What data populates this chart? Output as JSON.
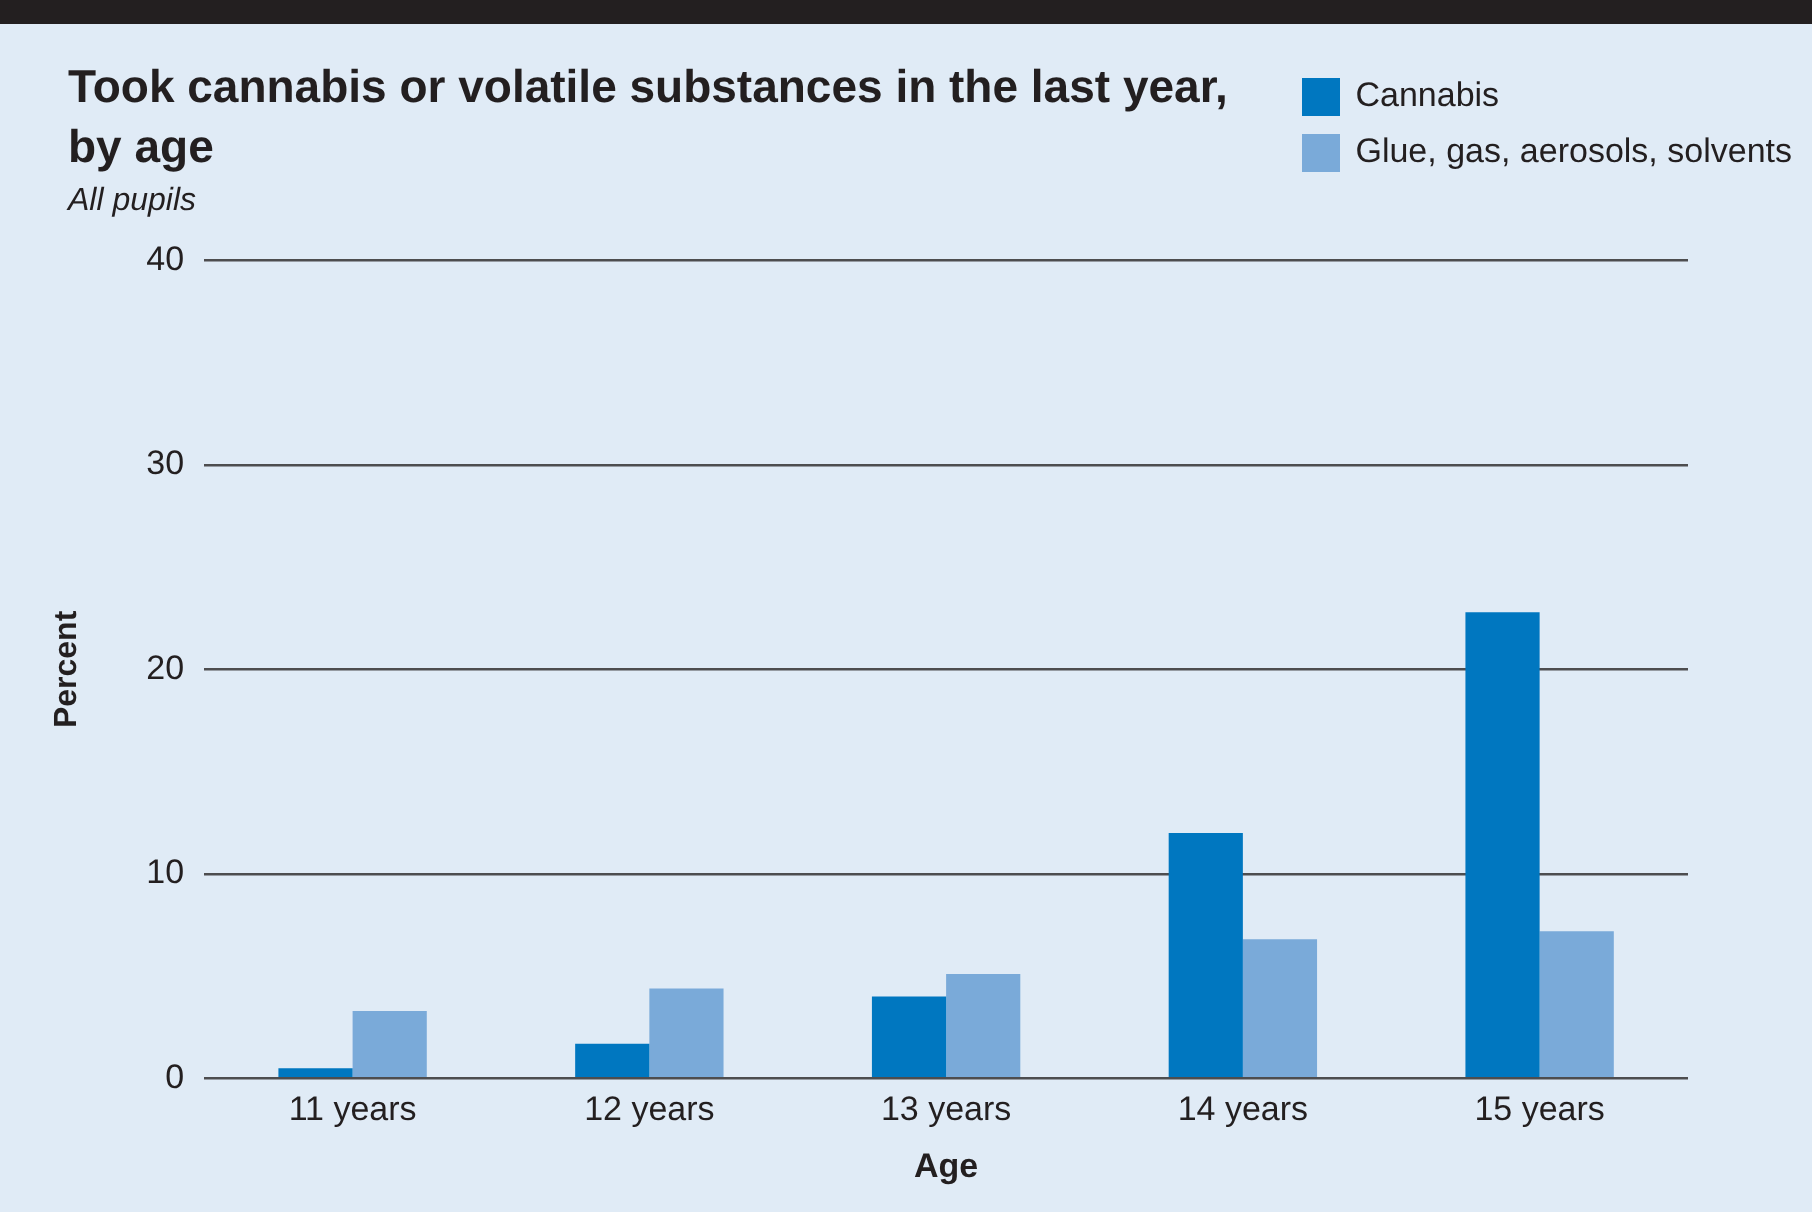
{
  "chart_data": {
    "type": "bar",
    "title": "Took cannabis or volatile substances in the last year, by age",
    "subtitle": "All pupils",
    "xlabel": "Age",
    "ylabel": "Percent",
    "categories": [
      "11 years",
      "12 years",
      "13 years",
      "14 years",
      "15 years"
    ],
    "series": [
      {
        "name": "Cannabis",
        "color": "#0077c0",
        "values": [
          0.5,
          1.7,
          4.0,
          12.0,
          22.8
        ]
      },
      {
        "name": "Glue, gas, aerosols, solvents",
        "color": "#7aaad9",
        "values": [
          3.3,
          4.4,
          5.1,
          6.8,
          7.2
        ]
      }
    ],
    "ylim": [
      0,
      40
    ],
    "yticks": [
      0,
      10,
      20,
      30,
      40
    ],
    "grid": "y",
    "legend": "top right"
  }
}
